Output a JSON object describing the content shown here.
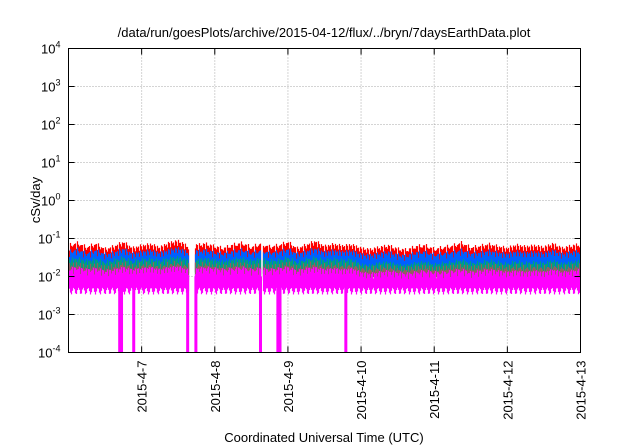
{
  "chart_data": {
    "type": "line",
    "title": "/data/run/goesPlots/archive/2015-04-12/flux/../bryn/7daysEarthData.plot",
    "xlabel": "Coordinated Universal Time (UTC)",
    "ylabel": "cSv/day",
    "yscale": "log",
    "ylim": [
      0.0001,
      10000
    ],
    "xlim": [
      "2015-04-06 00:00",
      "2015-04-13 00:00"
    ],
    "grid": true,
    "y_ticks": [
      {
        "base": "10",
        "exp": "4"
      },
      {
        "base": "10",
        "exp": "3"
      },
      {
        "base": "10",
        "exp": "2"
      },
      {
        "base": "10",
        "exp": "1"
      },
      {
        "base": "10",
        "exp": "0"
      },
      {
        "base": "10",
        "exp": "-1"
      },
      {
        "base": "10",
        "exp": "-2"
      },
      {
        "base": "10",
        "exp": "-3"
      },
      {
        "base": "10",
        "exp": "-4"
      }
    ],
    "x_ticks": [
      "2015-4-7",
      "2015-4-8",
      "2015-4-9",
      "2015-4-10",
      "2015-4-11",
      "2015-4-12",
      "2015-4-13"
    ],
    "sample_step_hours": 3,
    "data_gaps_hours": [
      [
        39.5,
        41.5
      ],
      [
        63.2,
        63.8
      ]
    ],
    "series": [
      {
        "name": "series-red",
        "color": "#ff0000",
        "low": 0.012,
        "values": [
          0.062,
          0.071,
          0.055,
          0.068,
          0.049,
          0.058,
          0.075,
          0.052,
          0.061,
          0.066,
          0.054,
          0.072,
          0.081,
          0.059,
          0.063,
          0.068,
          0.058,
          0.052,
          0.064,
          0.071,
          0.055,
          0.068,
          0.057,
          0.062,
          0.075,
          0.051,
          0.063,
          0.079,
          0.058,
          0.066,
          0.06,
          0.064,
          0.052,
          0.048,
          0.055,
          0.061,
          0.05,
          0.047,
          0.058,
          0.062,
          0.049,
          0.055,
          0.06,
          0.072,
          0.054,
          0.059,
          0.066,
          0.058,
          0.052,
          0.063,
          0.057,
          0.061,
          0.055,
          0.068,
          0.052,
          0.06,
          0.066
        ]
      },
      {
        "name": "series-blue",
        "color": "#0060ff",
        "low": 0.012,
        "values": [
          0.042,
          0.048,
          0.038,
          0.046,
          0.036,
          0.04,
          0.05,
          0.037,
          0.042,
          0.045,
          0.039,
          0.047,
          0.052,
          0.041,
          0.044,
          0.046,
          0.04,
          0.038,
          0.043,
          0.047,
          0.039,
          0.045,
          0.04,
          0.042,
          0.049,
          0.037,
          0.043,
          0.05,
          0.041,
          0.045,
          0.042,
          0.044,
          0.036,
          0.034,
          0.038,
          0.041,
          0.035,
          0.033,
          0.04,
          0.042,
          0.035,
          0.038,
          0.041,
          0.046,
          0.038,
          0.04,
          0.044,
          0.04,
          0.037,
          0.042,
          0.039,
          0.041,
          0.038,
          0.045,
          0.037,
          0.041,
          0.044
        ]
      },
      {
        "name": "series-teal",
        "color": "#00a080",
        "low": 0.01,
        "values": [
          0.026,
          0.028,
          0.024,
          0.027,
          0.022,
          0.025,
          0.029,
          0.023,
          0.026,
          0.027,
          0.024,
          0.028,
          0.03,
          0.025,
          0.026,
          0.027,
          0.025,
          0.023,
          0.026,
          0.028,
          0.024,
          0.027,
          0.024,
          0.025,
          0.029,
          0.022,
          0.026,
          0.029,
          0.025,
          0.027,
          0.025,
          0.026,
          0.019,
          0.018,
          0.021,
          0.022,
          0.019,
          0.018,
          0.021,
          0.022,
          0.019,
          0.021,
          0.022,
          0.025,
          0.021,
          0.022,
          0.024,
          0.022,
          0.02,
          0.023,
          0.021,
          0.022,
          0.021,
          0.024,
          0.02,
          0.022,
          0.024
        ]
      },
      {
        "name": "series-gray",
        "color": "#906060",
        "low": 0.008,
        "values": [
          0.019,
          0.02,
          0.017,
          0.019,
          0.016,
          0.018,
          0.021,
          0.017,
          0.019,
          0.02,
          0.017,
          0.02,
          0.021,
          0.018,
          0.019,
          0.02,
          0.018,
          0.017,
          0.019,
          0.02,
          0.017,
          0.019,
          0.017,
          0.018,
          0.021,
          0.016,
          0.019,
          0.021,
          0.018,
          0.019,
          0.018,
          0.019,
          0.016,
          0.015,
          0.016,
          0.017,
          0.015,
          0.015,
          0.016,
          0.017,
          0.015,
          0.016,
          0.017,
          0.018,
          0.016,
          0.017,
          0.018,
          0.017,
          0.016,
          0.017,
          0.016,
          0.017,
          0.016,
          0.018,
          0.016,
          0.017,
          0.018
        ]
      },
      {
        "name": "series-magenta",
        "color": "#ff00ff",
        "low": 0.0042,
        "values": [
          0.015,
          0.016,
          0.014,
          0.015,
          0.013,
          0.014,
          0.016,
          0.014,
          0.015,
          0.016,
          0.014,
          0.016,
          0.017,
          0.014,
          0.015,
          0.016,
          0.015,
          0.014,
          0.015,
          0.016,
          0.014,
          0.015,
          0.014,
          0.015,
          0.016,
          0.013,
          0.015,
          0.016,
          0.014,
          0.015,
          0.014,
          0.015,
          0.012,
          0.011,
          0.012,
          0.013,
          0.012,
          0.011,
          0.012,
          0.013,
          0.012,
          0.012,
          0.013,
          0.014,
          0.012,
          0.013,
          0.014,
          0.013,
          0.012,
          0.013,
          0.012,
          0.013,
          0.012,
          0.014,
          0.012,
          0.013,
          0.014
        ],
        "dropouts_hours": [
          16.8,
          17.4,
          21.4,
          39.1,
          41.8,
          63.0,
          68.7,
          69.4,
          91.0
        ]
      }
    ]
  }
}
